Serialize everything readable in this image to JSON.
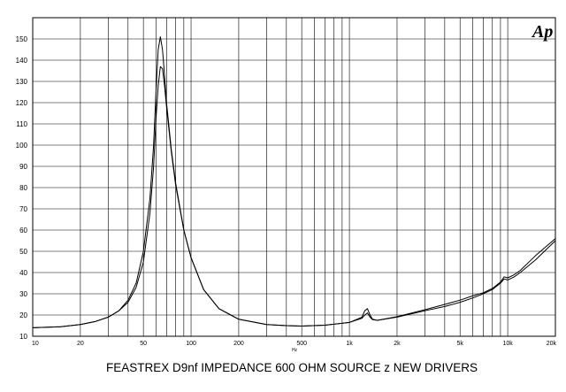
{
  "logo_text": "Ap",
  "caption": "FEASTREX D9nf IMPEDANCE   600 OHM SOURCE z   NEW DRIVERS",
  "chart_data": {
    "type": "line",
    "title": "FEASTREX D9nf IMPEDANCE   600 OHM SOURCE z   NEW DRIVERS",
    "xlabel": "Hz",
    "ylabel": "",
    "x_scale": "log",
    "xlim": [
      10,
      20000
    ],
    "ylim": [
      10,
      160
    ],
    "grid": true,
    "line_color": "#000000",
    "x_tick_values": [
      10,
      20,
      50,
      100,
      200,
      500,
      1000,
      2000,
      5000,
      10000,
      20000
    ],
    "x_tick_labels": [
      "10",
      "20",
      "50",
      "100",
      "200",
      "500",
      "1k",
      "2k",
      "5k",
      "10k",
      "20k"
    ],
    "y_tick_values": [
      10,
      20,
      30,
      40,
      50,
      60,
      70,
      80,
      90,
      100,
      110,
      120,
      130,
      140,
      150
    ],
    "y_tick_labels": [
      "10",
      "20",
      "30",
      "40",
      "50",
      "60",
      "70",
      "80",
      "90",
      "100",
      "110",
      "120",
      "130",
      "140",
      "150"
    ],
    "series": [
      {
        "x": [
          10,
          15,
          20,
          25,
          30,
          35,
          40,
          45,
          50,
          55,
          58,
          60,
          62,
          64,
          66,
          68,
          70,
          75,
          80,
          90,
          100,
          120,
          150,
          200,
          300,
          400,
          500,
          700,
          1000,
          1200,
          1250,
          1300,
          1350,
          1400,
          1500,
          2000,
          3000,
          4000,
          5000,
          6000,
          7000,
          8000,
          9000,
          9500,
          10000,
          11000,
          12000,
          15000,
          20000
        ],
        "y": [
          14,
          14.5,
          15.5,
          17,
          19,
          22,
          27,
          35,
          50,
          75,
          100,
          125,
          145,
          151,
          145,
          133,
          120,
          98,
          82,
          60,
          47,
          32,
          23,
          18,
          15.5,
          15,
          14.8,
          15.2,
          16.5,
          19,
          22,
          23,
          20,
          18,
          17.5,
          19,
          22,
          24,
          26,
          28,
          30,
          32,
          35,
          37,
          36.5,
          38,
          40,
          46,
          55
        ]
      },
      {
        "x": [
          10,
          15,
          20,
          25,
          30,
          35,
          40,
          45,
          50,
          55,
          58,
          60,
          62,
          64,
          66,
          68,
          70,
          75,
          80,
          90,
          100,
          120,
          150,
          200,
          300,
          400,
          500,
          700,
          1000,
          1200,
          1250,
          1300,
          1350,
          1400,
          1500,
          2000,
          3000,
          4000,
          5000,
          6000,
          7000,
          8000,
          9000,
          9500,
          10000,
          11000,
          12000,
          15000,
          20000
        ],
        "y": [
          14,
          14.5,
          15.5,
          17,
          19,
          22,
          26,
          33,
          45,
          68,
          90,
          112,
          128,
          137,
          136,
          128,
          118,
          97,
          81,
          60,
          47,
          32,
          23,
          18,
          15.5,
          15,
          14.8,
          15.2,
          16.5,
          18.5,
          20,
          21,
          19,
          17.8,
          17.5,
          19.2,
          22.5,
          25,
          27,
          29,
          30.5,
          32.5,
          35.5,
          38,
          37.5,
          39,
          41,
          48,
          56
        ]
      }
    ]
  }
}
